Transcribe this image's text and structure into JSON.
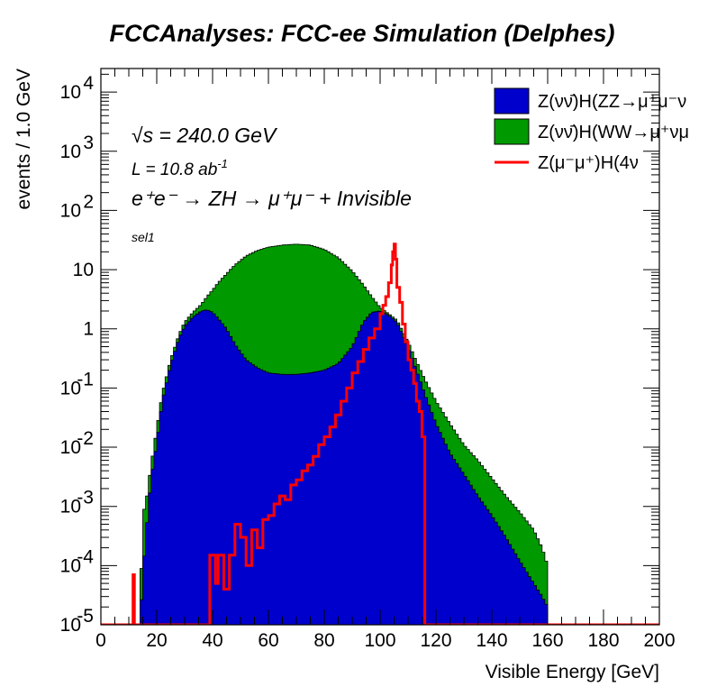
{
  "chart_data": {
    "type": "area",
    "title": "FCCAnalyses: FCC-ee Simulation (Delphes)",
    "xlabel": "Visible Energy [GeV]",
    "ylabel": "events / 1.0 GeV",
    "xlim": [
      0,
      200
    ],
    "ylim": [
      1e-05,
      25000
    ],
    "yscale": "log",
    "x_ticks": [
      "0",
      "20",
      "40",
      "60",
      "80",
      "100",
      "120",
      "140",
      "160",
      "180",
      "200"
    ],
    "y_ticks": [
      {
        "base": "10",
        "exp": "4",
        "value": 10000
      },
      {
        "base": "10",
        "exp": "3",
        "value": 1000
      },
      {
        "base": "10",
        "exp": "2",
        "value": 100
      },
      {
        "base": "10",
        "exp": "",
        "value": 10
      },
      {
        "base": "1",
        "exp": "",
        "value": 1
      },
      {
        "base": "10",
        "exp": "-1",
        "value": 0.1
      },
      {
        "base": "10",
        "exp": "-2",
        "value": 0.01
      },
      {
        "base": "10",
        "exp": "-3",
        "value": 0.001
      },
      {
        "base": "10",
        "exp": "-4",
        "value": 0.0001
      },
      {
        "base": "10",
        "exp": "-5",
        "value": 1e-05
      }
    ],
    "legend_position": "top-right",
    "annotations": {
      "sqrt_s": "√s = 240.0 GeV",
      "lumi": "L = 10.8 ab",
      "lumi_exp": "-1",
      "process": "e⁺e⁻ → ZH → μ⁺μ⁻ + Invisible",
      "selection": "sel1"
    },
    "series": [
      {
        "name": "Z(νν̄)H(ZZ→μ⁺μ⁻ν",
        "style": "stacked-fill",
        "color": "#0000cc",
        "x": [
          12,
          14,
          15,
          16,
          18,
          20,
          22,
          25,
          28,
          30,
          33,
          36,
          38,
          40,
          42,
          45,
          48,
          52,
          56,
          60,
          65,
          70,
          75,
          80,
          85,
          90,
          94,
          97,
          100,
          103,
          106,
          110,
          113,
          116,
          120,
          125,
          130,
          135,
          140,
          145,
          150,
          155,
          158,
          160
        ],
        "values": [
          1e-05,
          1e-05,
          7e-05,
          0.0003,
          0.003,
          0.012,
          0.06,
          0.25,
          0.7,
          1.1,
          1.6,
          2.0,
          2.1,
          1.9,
          1.5,
          1.0,
          0.55,
          0.3,
          0.22,
          0.18,
          0.17,
          0.17,
          0.18,
          0.2,
          0.26,
          0.5,
          1.3,
          1.9,
          2.0,
          1.7,
          1.3,
          0.5,
          0.2,
          0.08,
          0.025,
          0.008,
          0.0035,
          0.0015,
          0.0007,
          0.0003,
          0.00012,
          5e-05,
          3e-05,
          2e-05
        ]
      },
      {
        "name": "Z(νν̄)H(WW→μ⁺νμ",
        "style": "stacked-fill",
        "color": "#009900",
        "x": [
          12,
          14,
          15,
          16,
          18,
          20,
          22,
          25,
          28,
          30,
          33,
          36,
          38,
          40,
          42,
          45,
          48,
          52,
          56,
          60,
          65,
          70,
          75,
          80,
          85,
          90,
          94,
          97,
          100,
          103,
          106,
          110,
          113,
          116,
          120,
          125,
          130,
          135,
          140,
          145,
          150,
          155,
          158,
          160
        ],
        "values": [
          1e-05,
          1e-05,
          0.0008,
          0.001,
          0.005,
          0.02,
          0.08,
          0.3,
          0.8,
          1.3,
          1.9,
          2.6,
          3.5,
          4.5,
          6.0,
          8.5,
          12,
          17,
          21,
          24,
          26,
          27,
          26,
          22,
          16,
          9.5,
          5.5,
          3.5,
          2.3,
          1.8,
          1.4,
          0.6,
          0.28,
          0.14,
          0.06,
          0.025,
          0.011,
          0.006,
          0.003,
          0.0015,
          0.0008,
          0.0004,
          0.0002,
          0.0001
        ]
      },
      {
        "name": "Z(μ⁻μ⁺)H(4ν",
        "style": "step-line",
        "color": "#ff0000",
        "x": [
          0,
          11,
          11.5,
          12,
          38,
          39,
          40,
          41,
          42,
          44,
          46,
          48,
          50,
          52,
          54,
          56,
          58,
          60,
          62,
          64,
          66,
          68,
          70,
          72,
          74,
          76,
          78,
          80,
          82,
          84,
          86,
          88,
          90,
          92,
          94,
          96,
          98,
          100,
          101,
          102,
          103,
          104,
          104.5,
          105,
          105.5,
          106,
          107,
          108,
          109,
          110,
          111,
          112,
          113,
          114,
          115,
          116,
          117,
          200
        ],
        "values": [
          1e-05,
          1e-05,
          7e-05,
          1e-05,
          1e-05,
          0.00015,
          0.00015,
          5e-05,
          0.00015,
          4e-05,
          0.00015,
          0.0005,
          0.0003,
          0.0001,
          0.0004,
          0.0002,
          0.0006,
          0.0007,
          0.0011,
          0.0015,
          0.0013,
          0.0023,
          0.0028,
          0.004,
          0.005,
          0.007,
          0.011,
          0.015,
          0.022,
          0.035,
          0.06,
          0.1,
          0.18,
          0.28,
          0.45,
          0.7,
          1.0,
          1.8,
          2.5,
          3.5,
          6.0,
          12,
          20,
          27,
          15,
          5.0,
          2.8,
          1.2,
          0.6,
          0.3,
          0.2,
          0.12,
          0.06,
          0.04,
          0.015,
          1e-05,
          1e-05,
          1e-05
        ]
      }
    ]
  }
}
